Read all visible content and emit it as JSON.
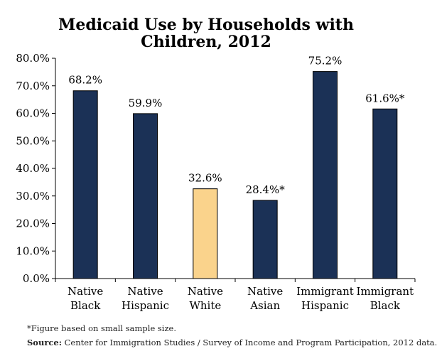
{
  "chart_data": {
    "type": "bar",
    "title_lines": [
      "Medicaid Use by Households with",
      "Children, 2012"
    ],
    "categories": [
      [
        "Native",
        "Black"
      ],
      [
        "Native",
        "Hispanic"
      ],
      [
        "Native",
        "White"
      ],
      [
        "Native",
        "Asian"
      ],
      [
        "Immigrant",
        "Hispanic"
      ],
      [
        "Immigrant",
        "Black"
      ]
    ],
    "values": [
      68.2,
      59.9,
      32.6,
      28.4,
      75.2,
      61.6
    ],
    "data_labels": [
      "68.2%",
      "59.9%",
      "32.6%",
      "28.4%*",
      "75.2%",
      "61.6%*"
    ],
    "bar_colors": [
      "#1b3156",
      "#1b3156",
      "#fad38c",
      "#1b3156",
      "#1b3156",
      "#1b3156"
    ],
    "y_ticks": [
      "0.0%",
      "10.0%",
      "20.0%",
      "30.0%",
      "40.0%",
      "50.0%",
      "60.0%",
      "70.0%",
      "80.0%"
    ],
    "ylim": [
      0,
      80
    ],
    "xlabel": "",
    "ylabel": "",
    "grid": false
  },
  "footnotes": {
    "note": "*Figure based on small sample size.",
    "source_label": "Source:",
    "source_text": " Center for Immigration Studies / Survey of Income and Program Participation, 2012 data."
  },
  "colors": {
    "axis": "#000000",
    "bar_outline": "#000000"
  }
}
